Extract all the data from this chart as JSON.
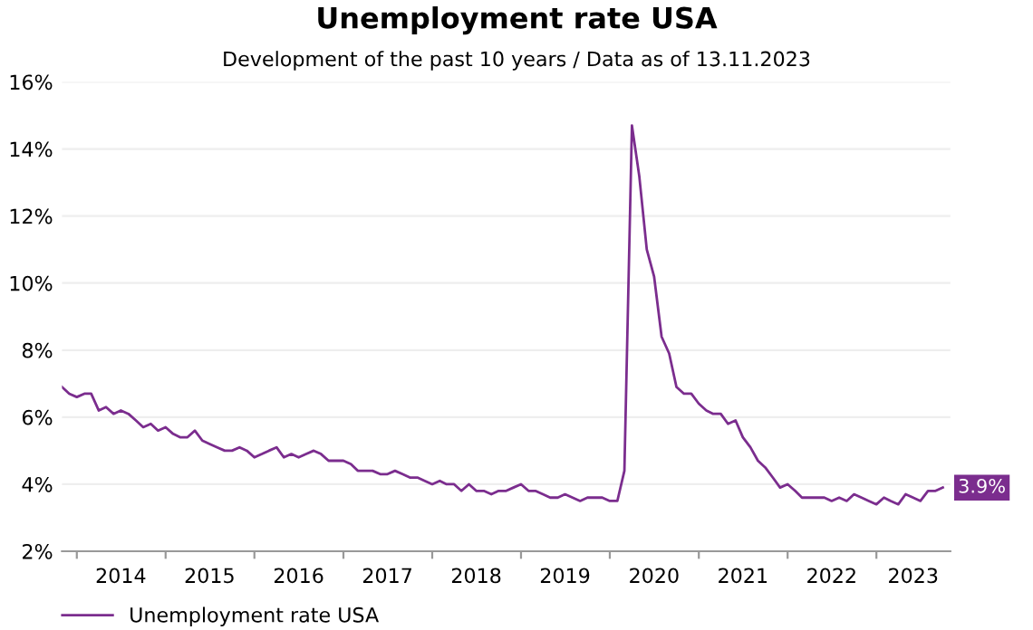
{
  "chart_data": {
    "type": "line",
    "title": "Unemployment rate USA",
    "subtitle": "Development of the past 10 years / Data as of 13.11.2023",
    "x": [
      "2013-11",
      "2013-12",
      "2014-01",
      "2014-02",
      "2014-03",
      "2014-04",
      "2014-05",
      "2014-06",
      "2014-07",
      "2014-08",
      "2014-09",
      "2014-10",
      "2014-11",
      "2014-12",
      "2015-01",
      "2015-02",
      "2015-03",
      "2015-04",
      "2015-05",
      "2015-06",
      "2015-07",
      "2015-08",
      "2015-09",
      "2015-10",
      "2015-11",
      "2015-12",
      "2016-01",
      "2016-02",
      "2016-03",
      "2016-04",
      "2016-05",
      "2016-06",
      "2016-07",
      "2016-08",
      "2016-09",
      "2016-10",
      "2016-11",
      "2016-12",
      "2017-01",
      "2017-02",
      "2017-03",
      "2017-04",
      "2017-05",
      "2017-06",
      "2017-07",
      "2017-08",
      "2017-09",
      "2017-10",
      "2017-11",
      "2017-12",
      "2018-01",
      "2018-02",
      "2018-03",
      "2018-04",
      "2018-05",
      "2018-06",
      "2018-07",
      "2018-08",
      "2018-09",
      "2018-10",
      "2018-11",
      "2018-12",
      "2019-01",
      "2019-02",
      "2019-03",
      "2019-04",
      "2019-05",
      "2019-06",
      "2019-07",
      "2019-08",
      "2019-09",
      "2019-10",
      "2019-11",
      "2019-12",
      "2020-01",
      "2020-02",
      "2020-03",
      "2020-04",
      "2020-05",
      "2020-06",
      "2020-07",
      "2020-08",
      "2020-09",
      "2020-10",
      "2020-11",
      "2020-12",
      "2021-01",
      "2021-02",
      "2021-03",
      "2021-04",
      "2021-05",
      "2021-06",
      "2021-07",
      "2021-08",
      "2021-09",
      "2021-10",
      "2021-11",
      "2021-12",
      "2022-01",
      "2022-02",
      "2022-03",
      "2022-04",
      "2022-05",
      "2022-06",
      "2022-07",
      "2022-08",
      "2022-09",
      "2022-10",
      "2022-11",
      "2022-12",
      "2023-01",
      "2023-02",
      "2023-03",
      "2023-04",
      "2023-05",
      "2023-06",
      "2023-07",
      "2023-08",
      "2023-09",
      "2023-10"
    ],
    "series": [
      {
        "name": "Unemployment rate USA",
        "color": "#7b2d8e",
        "values": [
          6.9,
          6.7,
          6.6,
          6.7,
          6.7,
          6.2,
          6.3,
          6.1,
          6.2,
          6.1,
          5.9,
          5.7,
          5.8,
          5.6,
          5.7,
          5.5,
          5.4,
          5.4,
          5.6,
          5.3,
          5.2,
          5.1,
          5.0,
          5.0,
          5.1,
          5.0,
          4.8,
          4.9,
          5.0,
          5.1,
          4.8,
          4.9,
          4.8,
          4.9,
          5.0,
          4.9,
          4.7,
          4.7,
          4.7,
          4.6,
          4.4,
          4.4,
          4.4,
          4.3,
          4.3,
          4.4,
          4.3,
          4.2,
          4.2,
          4.1,
          4.0,
          4.1,
          4.0,
          4.0,
          3.8,
          4.0,
          3.8,
          3.8,
          3.7,
          3.8,
          3.8,
          3.9,
          4.0,
          3.8,
          3.8,
          3.7,
          3.6,
          3.6,
          3.7,
          3.6,
          3.5,
          3.6,
          3.6,
          3.6,
          3.5,
          3.5,
          4.4,
          14.7,
          13.2,
          11.0,
          10.2,
          8.4,
          7.9,
          6.9,
          6.7,
          6.7,
          6.4,
          6.2,
          6.1,
          6.1,
          5.8,
          5.9,
          5.4,
          5.1,
          4.7,
          4.5,
          4.2,
          3.9,
          4.0,
          3.8,
          3.6,
          3.6,
          3.6,
          3.6,
          3.5,
          3.6,
          3.5,
          3.7,
          3.6,
          3.5,
          3.4,
          3.6,
          3.5,
          3.4,
          3.7,
          3.6,
          3.5,
          3.8,
          3.8,
          3.9
        ],
        "value_labels": [
          null,
          null,
          null,
          null,
          null,
          null,
          null,
          null,
          null,
          null,
          null,
          null,
          null,
          null,
          null,
          null,
          null,
          null,
          null,
          null,
          null,
          null,
          null,
          null,
          null,
          null,
          null,
          null,
          null,
          null,
          null,
          null,
          null,
          null,
          null,
          null,
          null,
          null,
          null,
          null,
          null,
          null,
          null,
          null,
          null,
          null,
          null,
          null,
          null,
          null,
          null,
          null,
          null,
          null,
          null,
          null,
          null,
          null,
          null,
          null,
          null,
          null,
          null,
          null,
          null,
          null,
          null,
          null,
          null,
          null,
          null,
          null,
          null,
          null,
          null,
          null,
          null,
          null,
          null,
          null,
          null,
          null,
          null,
          null,
          null,
          null,
          null,
          null,
          null,
          null,
          null,
          null,
          null,
          null,
          null,
          null,
          null,
          null,
          null,
          null,
          null,
          null,
          null,
          null,
          null,
          null,
          null,
          null,
          null,
          null,
          null,
          null,
          null,
          null,
          null,
          null,
          null,
          null,
          null,
          "3.9%"
        ]
      }
    ],
    "xlim": [
      "2013-11",
      "2023-11"
    ],
    "xticks": [
      {
        "value": "2014-01",
        "label": null
      },
      {
        "value": "2014-07",
        "label": "2014"
      },
      {
        "value": "2015-01",
        "label": null
      },
      {
        "value": "2015-07",
        "label": "2015"
      },
      {
        "value": "2016-01",
        "label": null
      },
      {
        "value": "2016-07",
        "label": "2016"
      },
      {
        "value": "2017-01",
        "label": null
      },
      {
        "value": "2017-07",
        "label": "2017"
      },
      {
        "value": "2018-01",
        "label": null
      },
      {
        "value": "2018-07",
        "label": "2018"
      },
      {
        "value": "2019-01",
        "label": null
      },
      {
        "value": "2019-07",
        "label": "2019"
      },
      {
        "value": "2020-01",
        "label": null
      },
      {
        "value": "2020-07",
        "label": "2020"
      },
      {
        "value": "2021-01",
        "label": null
      },
      {
        "value": "2021-07",
        "label": "2021"
      },
      {
        "value": "2022-01",
        "label": null
      },
      {
        "value": "2022-07",
        "label": "2022"
      },
      {
        "value": "2023-01",
        "label": null
      },
      {
        "value": "2023-06",
        "label": "2023"
      }
    ],
    "ylim": [
      2,
      16
    ],
    "yticks": [
      {
        "value": 2,
        "label": "2%"
      },
      {
        "value": 4,
        "label": "4%"
      },
      {
        "value": 6,
        "label": "6%"
      },
      {
        "value": 8,
        "label": "8%"
      },
      {
        "value": 10,
        "label": "10%"
      },
      {
        "value": 12,
        "label": "12%"
      },
      {
        "value": 14,
        "label": "14%"
      },
      {
        "value": 16,
        "label": "16%"
      }
    ],
    "grid": "y",
    "legend": "bottom left",
    "marker": "none",
    "line_style": "solid"
  }
}
